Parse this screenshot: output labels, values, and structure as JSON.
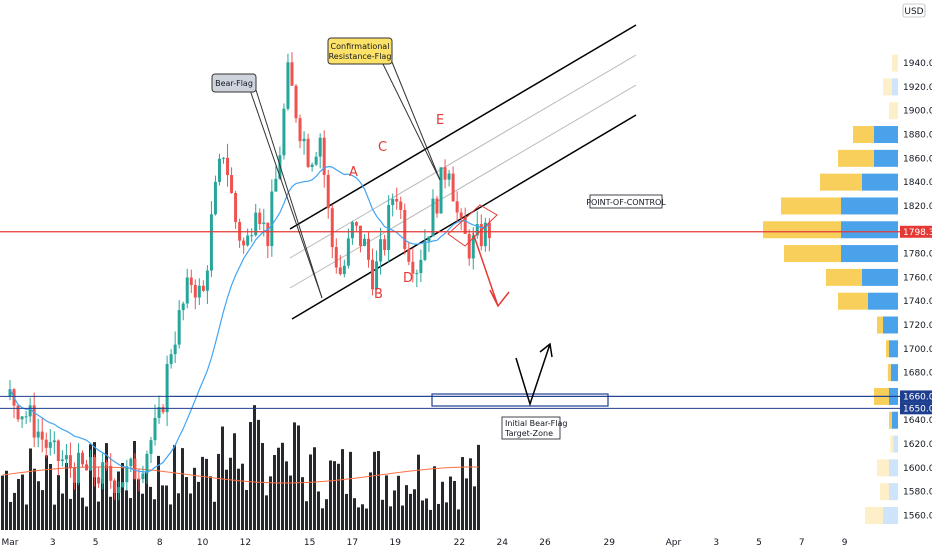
{
  "chart_data": {
    "type": "candlestick",
    "currency": "USD",
    "ylim": [
      1552,
      1972
    ],
    "y_ticks": [
      "1940.00",
      "1920.00",
      "1900.00",
      "1880.00",
      "1860.00",
      "1840.00",
      "1820.00",
      "1800.00",
      "1780.00",
      "1760.00",
      "1740.00",
      "1720.00",
      "1700.00",
      "1680.00",
      "1660.00",
      "1640.00",
      "1620.00",
      "1600.00",
      "1580.00",
      "1560.00"
    ],
    "x_ticks": [
      {
        "label": "Mar",
        "day": 1
      },
      {
        "label": "3",
        "day": 3
      },
      {
        "label": "5",
        "day": 5
      },
      {
        "label": "8",
        "day": 8
      },
      {
        "label": "10",
        "day": 10
      },
      {
        "label": "12",
        "day": 12
      },
      {
        "label": "15",
        "day": 15
      },
      {
        "label": "17",
        "day": 17
      },
      {
        "label": "19",
        "day": 19
      },
      {
        "label": "22",
        "day": 22
      },
      {
        "label": "24",
        "day": 24
      },
      {
        "label": "26",
        "day": 26
      },
      {
        "label": "29",
        "day": 29
      },
      {
        "label": "Apr",
        "day": 32
      },
      {
        "label": "3",
        "day": 34
      },
      {
        "label": "5",
        "day": 36
      },
      {
        "label": "7",
        "day": 38
      },
      {
        "label": "9",
        "day": 40
      }
    ],
    "price_badges": [
      {
        "label": "1798.31",
        "value": 1798.31,
        "color": "#e53935"
      },
      {
        "label": "1660.00",
        "value": 1660,
        "color": "#1e3f8f"
      },
      {
        "label": "1650.00",
        "value": 1650,
        "color": "#1e3f8f"
      }
    ],
    "horizontal_lines": [
      {
        "value": 1798.31,
        "color": "#e53935"
      },
      {
        "value": 1660,
        "color": "#1e3f8f"
      },
      {
        "value": 1650,
        "color": "#1e3f8f"
      }
    ],
    "annotations": {
      "bear_flag": "Bear-Flag",
      "confirmational": "Confirmational\nResistance-Flag",
      "poc": "POINT-OF-CONTROL",
      "target": "Initial Bear-Flag\nTarget-Zone"
    },
    "waves": [
      "A",
      "B",
      "C",
      "D",
      "E"
    ],
    "price_path": [
      [
        0,
        1660
      ],
      [
        1,
        1640
      ],
      [
        2,
        1610
      ],
      [
        3,
        1600
      ],
      [
        4,
        1595
      ],
      [
        5,
        1590
      ],
      [
        6,
        1600
      ],
      [
        7,
        1640
      ],
      [
        7.5,
        1700
      ],
      [
        8,
        1730
      ],
      [
        8.5,
        1760
      ],
      [
        9,
        1740
      ],
      [
        9.5,
        1820
      ],
      [
        10,
        1870
      ],
      [
        10.5,
        1810
      ],
      [
        11,
        1780
      ],
      [
        11.5,
        1830
      ],
      [
        12,
        1790
      ],
      [
        12.5,
        1850
      ],
      [
        13,
        1930
      ],
      [
        13.5,
        1890
      ],
      [
        14,
        1860
      ],
      [
        14.5,
        1880
      ],
      [
        15,
        1790
      ],
      [
        15.5,
        1760
      ],
      [
        16,
        1800
      ],
      [
        16.5,
        1790
      ],
      [
        17,
        1760
      ],
      [
        17.5,
        1790
      ],
      [
        18,
        1840
      ],
      [
        18.5,
        1790
      ],
      [
        19,
        1770
      ],
      [
        19.5,
        1800
      ],
      [
        20,
        1830
      ],
      [
        20.5,
        1860
      ],
      [
        21,
        1800
      ],
      [
        21.5,
        1785
      ],
      [
        22,
        1795
      ],
      [
        22.4,
        1800
      ]
    ],
    "volume_profile": [
      {
        "price": 1940,
        "sell": 0.1,
        "buy": 0.0
      },
      {
        "price": 1920,
        "sell": 0.15,
        "buy": 0.1
      },
      {
        "price": 1900,
        "sell": 0.15,
        "buy": 0.0
      },
      {
        "price": 1880,
        "sell": 0.35,
        "buy": 0.4
      },
      {
        "price": 1860,
        "sell": 0.6,
        "buy": 0.4
      },
      {
        "price": 1840,
        "sell": 0.7,
        "buy": 0.6
      },
      {
        "price": 1820,
        "sell": 1.0,
        "buy": 0.95
      },
      {
        "price": 1800,
        "sell": 1.3,
        "buy": 0.95
      },
      {
        "price": 1780,
        "sell": 0.95,
        "buy": 0.95
      },
      {
        "price": 1760,
        "sell": 0.6,
        "buy": 0.6
      },
      {
        "price": 1740,
        "sell": 0.5,
        "buy": 0.5
      },
      {
        "price": 1720,
        "sell": 0.1,
        "buy": 0.25
      },
      {
        "price": 1700,
        "sell": 0.05,
        "buy": 0.15
      },
      {
        "price": 1680,
        "sell": 0.05,
        "buy": 0.12
      },
      {
        "price": 1660,
        "sell": 0.25,
        "buy": 0.15
      },
      {
        "price": 1640,
        "sell": 0.05,
        "buy": 0.1
      },
      {
        "price": 1620,
        "sell": 0.05,
        "buy": 0.08
      },
      {
        "price": 1600,
        "sell": 0.2,
        "buy": 0.15
      },
      {
        "price": 1580,
        "sell": 0.15,
        "buy": 0.15
      },
      {
        "price": 1560,
        "sell": 0.3,
        "buy": 0.25
      }
    ]
  }
}
